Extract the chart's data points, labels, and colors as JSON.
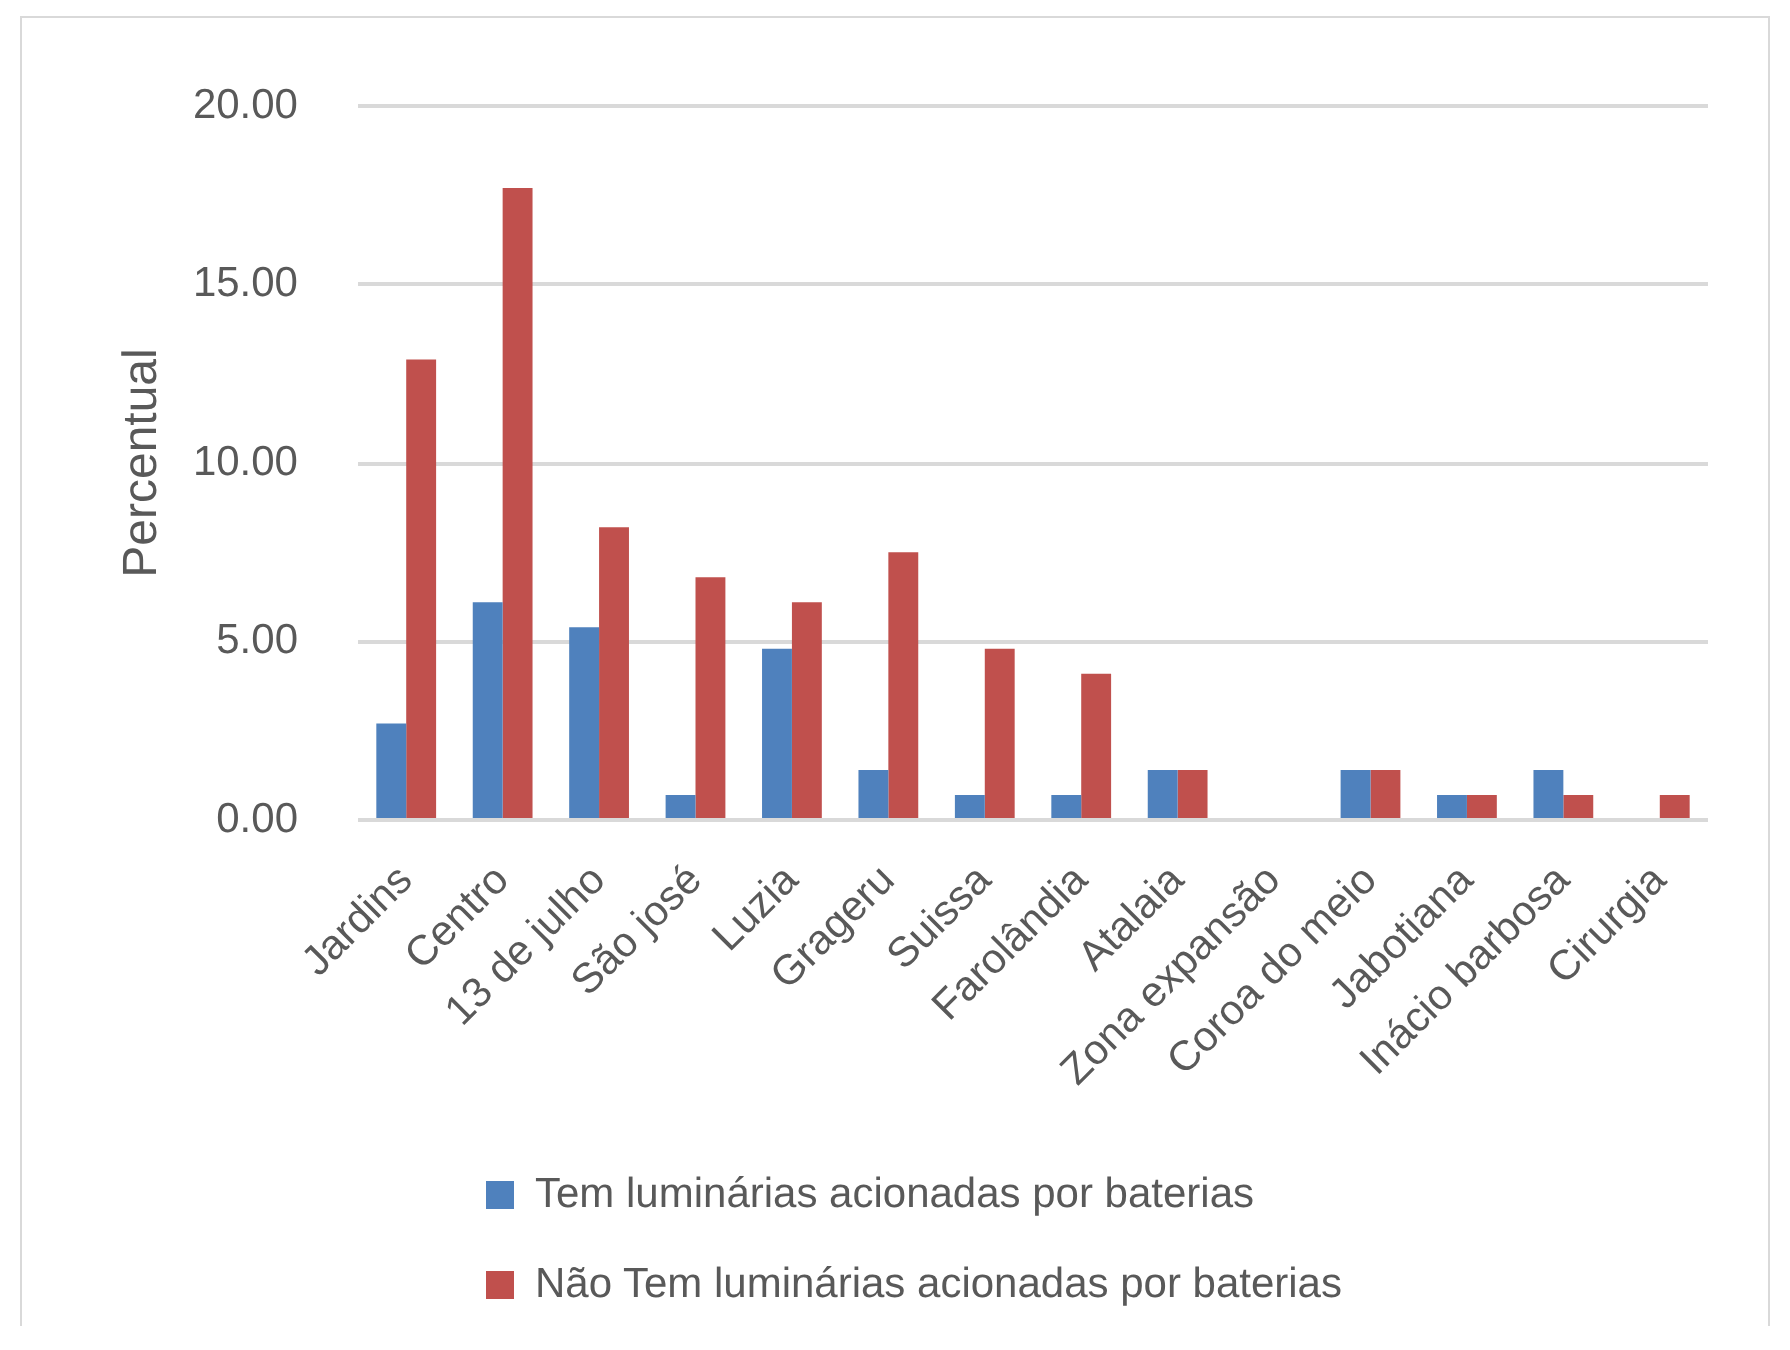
{
  "chart_data": {
    "type": "bar",
    "ylabel": "Percentual",
    "categories": [
      "Jardins",
      "Centro",
      "13 de julho",
      "São josé",
      "Luzia",
      "Grageru",
      "Suissa",
      "Farolândia",
      "Atalaia",
      "Zona expansão",
      "Coroa do meio",
      "Jabotiana",
      "Inácio barbosa",
      "Cirurgia"
    ],
    "series": [
      {
        "name": "Tem luminárias acionadas por baterias",
        "color": "#4f81bd",
        "values": [
          2.7,
          6.1,
          5.4,
          0.7,
          4.8,
          1.4,
          0.7,
          0.7,
          1.4,
          0,
          1.4,
          0.7,
          1.4,
          0
        ]
      },
      {
        "name": "Não Tem luminárias acionadas por baterias",
        "color": "#c0504d",
        "values": [
          12.9,
          17.7,
          8.2,
          6.8,
          6.1,
          7.5,
          4.8,
          4.1,
          1.4,
          0,
          1.4,
          0.7,
          0.7,
          0.7
        ]
      }
    ],
    "ylim": [
      0,
      20
    ],
    "yticks": [
      {
        "value": 0,
        "label": "0.00"
      },
      {
        "value": 5,
        "label": "5.00"
      },
      {
        "value": 10,
        "label": "10.00"
      },
      {
        "value": 15,
        "label": "15.00"
      },
      {
        "value": 20,
        "label": "20.00"
      }
    ],
    "grid": "y",
    "legend": "bottom"
  }
}
